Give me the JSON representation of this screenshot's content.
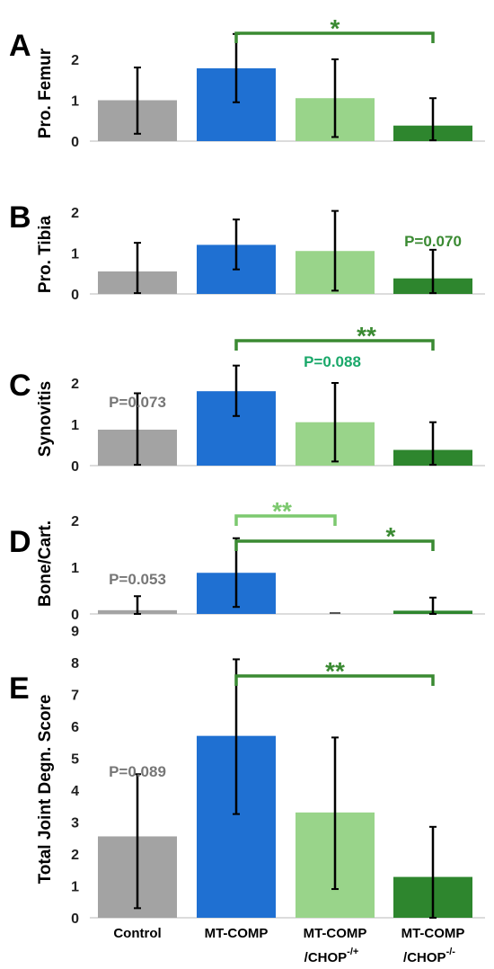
{
  "colors": {
    "control": "#a3a3a3",
    "mt_comp": "#1f70d2",
    "chop_het": "#99d48a",
    "chop_ko": "#2e862e",
    "sig_dark": "#3a8a32",
    "sig_light": "#7cc96f",
    "pval_gray": "#777777",
    "pval_green": "#1aa86a"
  },
  "categories": [
    "Control",
    "MT-COMP",
    "MT-COMP /CHOP-/+",
    "MT-COMP /CHOP-/-"
  ],
  "category_labels": [
    {
      "line1": "Control",
      "line2": "",
      "sup": ""
    },
    {
      "line1": "MT-COMP",
      "line2": "",
      "sup": ""
    },
    {
      "line1": "MT-COMP",
      "line2": "/CHOP",
      "sup": "-/+"
    },
    {
      "line1": "MT-COMP",
      "line2": "/CHOP",
      "sup": "-/-"
    }
  ],
  "chart_data": [
    {
      "type": "bar",
      "panel": "A",
      "ylabel": "Pro. Femur",
      "categories": [
        "Control",
        "MT-COMP",
        "MT-COMP /CHOP-/+",
        "MT-COMP /CHOP-/-"
      ],
      "values": [
        1.0,
        1.78,
        1.05,
        0.38
      ],
      "error_low": [
        0.18,
        0.95,
        0.1,
        0.02
      ],
      "error_high": [
        1.8,
        2.62,
        2.0,
        1.05
      ],
      "ylim": [
        0,
        2.6
      ],
      "yticks": [
        0,
        1,
        2
      ],
      "annotations": [
        {
          "type": "bracket",
          "from": 1,
          "to": 3,
          "text": "*",
          "color": "sig_dark"
        }
      ]
    },
    {
      "type": "bar",
      "panel": "B",
      "ylabel": "Pro. Tibia",
      "categories": [
        "Control",
        "MT-COMP",
        "MT-COMP /CHOP-/+",
        "MT-COMP /CHOP-/-"
      ],
      "values": [
        0.55,
        1.2,
        1.05,
        0.38
      ],
      "error_low": [
        0.02,
        0.6,
        0.08,
        0.02
      ],
      "error_high": [
        1.25,
        1.82,
        2.03,
        1.08
      ],
      "ylim": [
        0,
        2.2
      ],
      "yticks": [
        0,
        1,
        2
      ],
      "annotations": [
        {
          "type": "text",
          "at": 3,
          "text": "P=0.070",
          "color": "sig_dark"
        }
      ]
    },
    {
      "type": "bar",
      "panel": "C",
      "ylabel": "Synovitis",
      "categories": [
        "Control",
        "MT-COMP",
        "MT-COMP /CHOP-/+",
        "MT-COMP /CHOP-/-"
      ],
      "values": [
        0.87,
        1.8,
        1.05,
        0.38
      ],
      "error_low": [
        0.02,
        1.2,
        0.1,
        0.02
      ],
      "error_high": [
        1.75,
        2.42,
        2.0,
        1.05
      ],
      "ylim": [
        0,
        2.7
      ],
      "yticks": [
        0,
        1,
        2
      ],
      "annotations": [
        {
          "type": "bracket",
          "from": 1,
          "to": 3,
          "text": "**",
          "color": "sig_dark"
        },
        {
          "type": "text",
          "at": 0,
          "text": "P=0.073",
          "color": "pval_gray"
        },
        {
          "type": "text",
          "at": 2,
          "text": "P=0.088",
          "color": "pval_green"
        }
      ]
    },
    {
      "type": "bar",
      "panel": "D",
      "ylabel": "Bone/Cart.",
      "categories": [
        "Control",
        "MT-COMP",
        "MT-COMP /CHOP-/+",
        "MT-COMP /CHOP-/-"
      ],
      "values": [
        0.08,
        0.88,
        0.0,
        0.07
      ],
      "error_low": [
        0.0,
        0.15,
        0.0,
        0.0
      ],
      "error_high": [
        0.38,
        1.62,
        0.0,
        0.35
      ],
      "ylim": [
        0,
        2.1
      ],
      "yticks": [
        0,
        1,
        2
      ],
      "annotations": [
        {
          "type": "bracket",
          "from": 1,
          "to": 2,
          "text": "**",
          "color": "sig_light"
        },
        {
          "type": "bracket",
          "from": 1,
          "to": 3,
          "text": "*",
          "color": "sig_dark"
        },
        {
          "type": "text",
          "at": 0,
          "text": "P=0.053",
          "color": "pval_gray"
        }
      ]
    },
    {
      "type": "bar",
      "panel": "E",
      "ylabel": "Total Joint Degn. Score",
      "categories": [
        "Control",
        "MT-COMP",
        "MT-COMP /CHOP-/+",
        "MT-COMP /CHOP-/-"
      ],
      "values": [
        2.55,
        5.7,
        3.3,
        1.28
      ],
      "error_low": [
        0.3,
        3.25,
        0.9,
        0.0
      ],
      "error_high": [
        4.5,
        8.1,
        5.65,
        2.85
      ],
      "ylim": [
        0,
        9
      ],
      "yticks": [
        0,
        1,
        2,
        3,
        4,
        5,
        6,
        7,
        8,
        9
      ],
      "annotations": [
        {
          "type": "bracket",
          "from": 1,
          "to": 3,
          "text": "**",
          "color": "sig_dark"
        },
        {
          "type": "text",
          "at": 0,
          "text": "P=0.089",
          "color": "pval_gray"
        }
      ]
    }
  ]
}
